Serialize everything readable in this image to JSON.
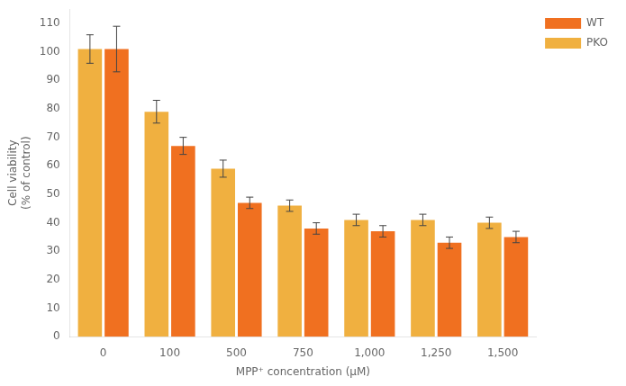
{
  "chart_data": {
    "type": "bar",
    "categories": [
      "0",
      "100",
      "500",
      "750",
      "1,000",
      "1,250",
      "1,500"
    ],
    "series": [
      {
        "name": "PKO",
        "color": "#F0B040",
        "values": [
          101,
          79,
          59,
          46,
          41,
          41,
          40
        ],
        "errors": [
          5,
          4,
          3,
          2,
          2,
          2,
          2
        ]
      },
      {
        "name": "WT",
        "color": "#F07020",
        "values": [
          101,
          67,
          47,
          38,
          37,
          33,
          35
        ],
        "errors": [
          8,
          3,
          2,
          2,
          2,
          2,
          2
        ]
      }
    ],
    "xlabel": "MPP⁺ concentration (μM)",
    "ylabel": "Cell viability\n(% of control)",
    "ylim": [
      0,
      115
    ],
    "yticks": [
      0,
      10,
      20,
      30,
      40,
      50,
      60,
      70,
      80,
      90,
      100,
      110
    ],
    "grid": false,
    "legend": "right"
  }
}
